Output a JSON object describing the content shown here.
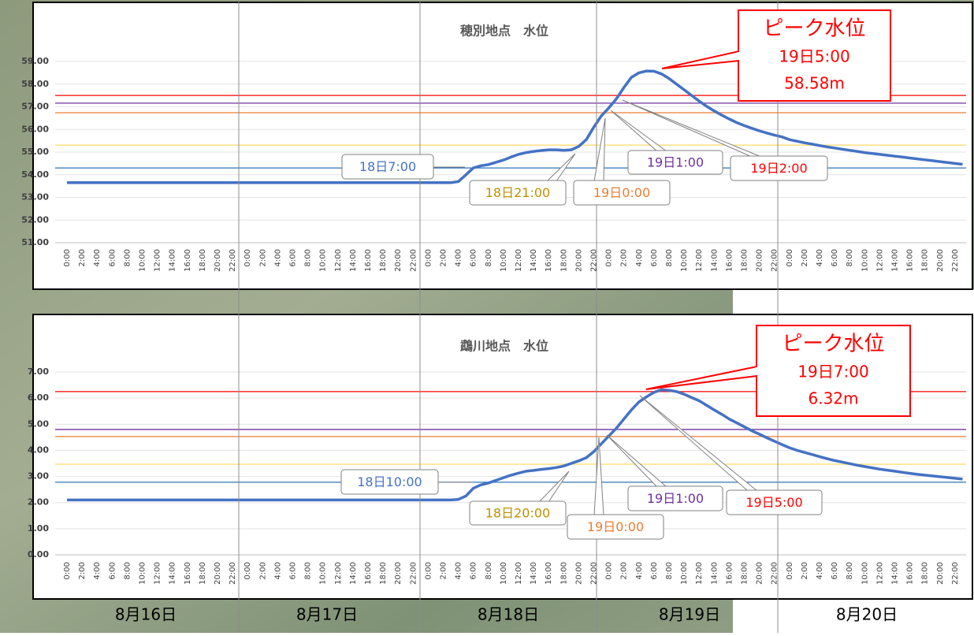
{
  "chart_data": [
    {
      "type": "line",
      "title": "穂別地点　水位",
      "color": "#4472c4",
      "ylim": [
        51,
        59
      ],
      "yticks": [
        {
          "value": 51,
          "label": "51.00"
        },
        {
          "value": 52,
          "label": "52.00"
        },
        {
          "value": 53,
          "label": "53.00"
        },
        {
          "value": 54,
          "label": "54.00"
        },
        {
          "value": 55,
          "label": "55.00"
        },
        {
          "value": 56,
          "label": "56.00"
        },
        {
          "value": 57,
          "label": "57.00"
        },
        {
          "value": 58,
          "label": "58.00"
        },
        {
          "value": 59,
          "label": "59.00"
        }
      ],
      "grid": true,
      "reference_lines": [
        {
          "value": 57.5,
          "color": "#ff0000"
        },
        {
          "value": 57.16,
          "color": "#7030a0"
        },
        {
          "value": 56.74,
          "color": "#ed7d31"
        },
        {
          "value": 55.31,
          "color": "#ffd966"
        },
        {
          "value": 54.3,
          "color": "#2e75b6"
        }
      ],
      "categories": [
        "0:00",
        null,
        "2:00",
        null,
        "4:00",
        null,
        "6:00",
        null,
        "8:00",
        null,
        "10:00",
        null,
        "12:00",
        null,
        "14:00",
        null,
        "16:00",
        null,
        "18:00",
        null,
        "20:00",
        null,
        "22:00",
        null,
        "0:00",
        null,
        "2:00",
        null,
        "4:00",
        null,
        "6:00",
        null,
        "8:00",
        null,
        "10:00",
        null,
        "12:00",
        null,
        "14:00",
        null,
        "16:00",
        null,
        "18:00",
        null,
        "20:00",
        null,
        "22:00",
        null,
        "0:00",
        null,
        "2:00",
        null,
        "4:00",
        null,
        "6:00",
        null,
        "8:00",
        null,
        "10:00",
        null,
        "12:00",
        null,
        "14:00",
        null,
        "16:00",
        null,
        "18:00",
        null,
        "20:00",
        null,
        "22:00",
        null,
        "0:00",
        null,
        "2:00",
        null,
        "4:00",
        null,
        "6:00",
        null,
        "8:00",
        null,
        "10:00",
        null,
        "12:00",
        null,
        "14:00",
        null,
        "16:00",
        null,
        "18:00",
        null,
        "20:00",
        null,
        "22:00",
        null,
        "0:00",
        null,
        "2:00",
        null,
        "4:00",
        null,
        "6:00",
        null,
        "8:00",
        null,
        "10:00",
        null,
        "12:00",
        null,
        "14:00",
        null,
        "16:00",
        null,
        "18:00",
        null,
        "20:00",
        null,
        "22:00",
        null
      ],
      "values": [
        53.65,
        53.65,
        53.65,
        53.65,
        53.65,
        53.65,
        53.65,
        53.65,
        53.65,
        53.65,
        53.65,
        53.65,
        53.65,
        53.65,
        53.65,
        53.65,
        53.65,
        53.65,
        53.65,
        53.65,
        53.65,
        53.65,
        53.65,
        53.65,
        53.65,
        53.65,
        53.65,
        53.65,
        53.65,
        53.65,
        53.65,
        53.65,
        53.65,
        53.65,
        53.65,
        53.65,
        53.65,
        53.65,
        53.65,
        53.65,
        53.65,
        53.65,
        53.65,
        53.65,
        53.65,
        53.65,
        53.65,
        53.65,
        53.65,
        53.65,
        53.65,
        53.65,
        53.7,
        54.0,
        54.3,
        54.4,
        54.45,
        54.55,
        54.65,
        54.78,
        54.9,
        54.98,
        55.03,
        55.07,
        55.1,
        55.1,
        55.08,
        55.1,
        55.25,
        55.55,
        56.1,
        56.6,
        56.95,
        57.35,
        57.85,
        58.3,
        58.5,
        58.58,
        58.57,
        58.45,
        58.25,
        58.0,
        57.75,
        57.5,
        57.25,
        57.02,
        56.82,
        56.63,
        56.46,
        56.3,
        56.17,
        56.05,
        55.94,
        55.84,
        55.75,
        55.67,
        55.55,
        55.48,
        55.41,
        55.35,
        55.29,
        55.23,
        55.18,
        55.13,
        55.08,
        55.03,
        54.98,
        54.94,
        54.9,
        54.86,
        54.82,
        54.78,
        54.74,
        54.7,
        54.66,
        54.62,
        54.58,
        54.54,
        54.5,
        54.46
      ],
      "annotations": [
        {
          "text": "18日7:00",
          "color": "#4472c4"
        },
        {
          "text": "18日21:00",
          "color": "#bf9000"
        },
        {
          "text": "19日0:00",
          "color": "#ed7d31"
        },
        {
          "text": "19日1:00",
          "color": "#7030a0"
        },
        {
          "text": "19日2:00",
          "color": "#ff0000"
        }
      ],
      "peak": {
        "title": "ピーク水位",
        "time": "19日5:00",
        "level": "58.58m"
      }
    },
    {
      "type": "line",
      "title": "鵡川地点　水位",
      "color": "#4472c4",
      "ylim": [
        0,
        7
      ],
      "yticks": [
        {
          "value": 0,
          "label": "0.00"
        },
        {
          "value": 1,
          "label": "1.00"
        },
        {
          "value": 2,
          "label": "2.00"
        },
        {
          "value": 3,
          "label": "3.00"
        },
        {
          "value": 4,
          "label": "4.00"
        },
        {
          "value": 5,
          "label": "5.00"
        },
        {
          "value": 6,
          "label": "6.00"
        },
        {
          "value": 7,
          "label": "7.00"
        }
      ],
      "grid": true,
      "reference_lines": [
        {
          "value": 6.25,
          "color": "#ff0000"
        },
        {
          "value": 4.8,
          "color": "#7030a0"
        },
        {
          "value": 4.53,
          "color": "#ed7d31"
        },
        {
          "value": 3.47,
          "color": "#ffd966"
        },
        {
          "value": 2.78,
          "color": "#2e75b6"
        }
      ],
      "categories": [
        "0:00",
        null,
        "2:00",
        null,
        "4:00",
        null,
        "6:00",
        null,
        "8:00",
        null,
        "10:00",
        null,
        "12:00",
        null,
        "14:00",
        null,
        "16:00",
        null,
        "18:00",
        null,
        "20:00",
        null,
        "22:00",
        null,
        "0:00",
        null,
        "2:00",
        null,
        "4:00",
        null,
        "6:00",
        null,
        "8:00",
        null,
        "10:00",
        null,
        "12:00",
        null,
        "14:00",
        null,
        "16:00",
        null,
        "18:00",
        null,
        "20:00",
        null,
        "22:00",
        null,
        "0:00",
        null,
        "2:00",
        null,
        "4:00",
        null,
        "6:00",
        null,
        "8:00",
        null,
        "10:00",
        null,
        "12:00",
        null,
        "14:00",
        null,
        "16:00",
        null,
        "18:00",
        null,
        "20:00",
        null,
        "22:00",
        null,
        "0:00",
        null,
        "2:00",
        null,
        "4:00",
        null,
        "6:00",
        null,
        "8:00",
        null,
        "10:00",
        null,
        "12:00",
        null,
        "14:00",
        null,
        "16:00",
        null,
        "18:00",
        null,
        "20:00",
        null,
        "22:00",
        null,
        "0:00",
        null,
        "2:00",
        null,
        "4:00",
        null,
        "6:00",
        null,
        "8:00",
        null,
        "10:00",
        null,
        "12:00",
        null,
        "14:00",
        null,
        "16:00",
        null,
        "18:00",
        null,
        "20:00",
        null,
        "22:00",
        null
      ],
      "values": [
        2.1,
        2.1,
        2.1,
        2.1,
        2.1,
        2.1,
        2.1,
        2.1,
        2.1,
        2.1,
        2.1,
        2.1,
        2.1,
        2.1,
        2.1,
        2.1,
        2.1,
        2.1,
        2.1,
        2.1,
        2.1,
        2.1,
        2.1,
        2.1,
        2.1,
        2.1,
        2.1,
        2.1,
        2.1,
        2.1,
        2.1,
        2.1,
        2.1,
        2.1,
        2.1,
        2.1,
        2.1,
        2.1,
        2.1,
        2.1,
        2.1,
        2.1,
        2.1,
        2.1,
        2.1,
        2.1,
        2.1,
        2.1,
        2.1,
        2.1,
        2.1,
        2.1,
        2.12,
        2.25,
        2.55,
        2.68,
        2.75,
        2.85,
        2.95,
        3.05,
        3.13,
        3.2,
        3.23,
        3.27,
        3.3,
        3.34,
        3.4,
        3.5,
        3.6,
        3.72,
        3.95,
        4.25,
        4.55,
        4.85,
        5.2,
        5.55,
        5.85,
        6.05,
        6.22,
        6.32,
        6.3,
        6.25,
        6.15,
        6.02,
        5.9,
        5.72,
        5.55,
        5.38,
        5.2,
        5.05,
        4.9,
        4.75,
        4.62,
        4.48,
        4.35,
        4.22,
        4.1,
        4.0,
        3.92,
        3.84,
        3.76,
        3.68,
        3.61,
        3.55,
        3.49,
        3.43,
        3.38,
        3.33,
        3.28,
        3.24,
        3.2,
        3.16,
        3.12,
        3.08,
        3.05,
        3.02,
        2.99,
        2.96,
        2.93,
        2.9
      ],
      "annotations": [
        {
          "text": "18日10:00",
          "color": "#4472c4"
        },
        {
          "text": "18日20:00",
          "color": "#bf9000"
        },
        {
          "text": "19日0:00",
          "color": "#ed7d31"
        },
        {
          "text": "19日1:00",
          "color": "#7030a0"
        },
        {
          "text": "19日5:00",
          "color": "#ff0000"
        }
      ],
      "peak": {
        "title": "ピーク水位",
        "time": "19日7:00",
        "level": "6.32m"
      }
    }
  ],
  "day_labels": [
    "8月16日",
    "8月17日",
    "8月18日",
    "8月19日",
    "8月20日"
  ]
}
